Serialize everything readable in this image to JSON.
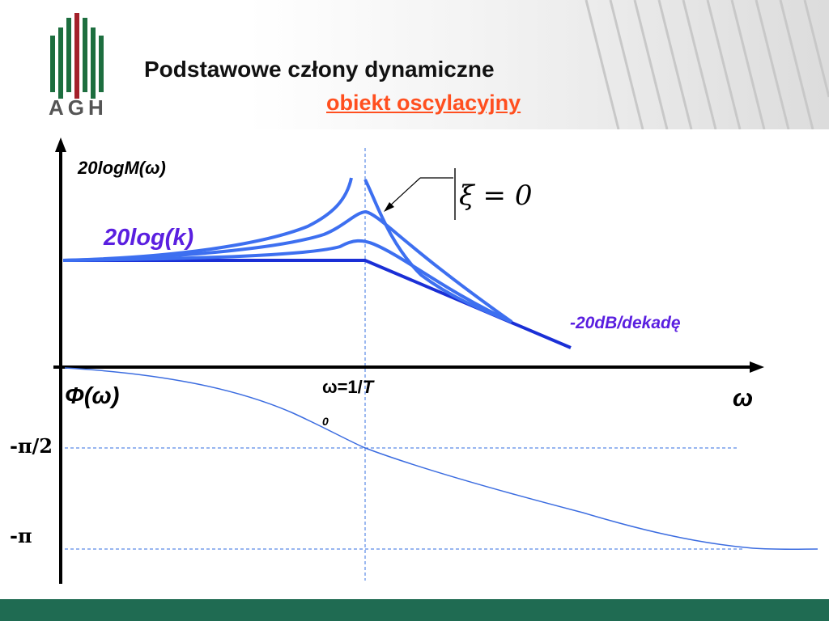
{
  "header": {
    "title": "Podstawowe człony dynamiczne",
    "subtitle": "obiekt oscylacyjny",
    "logo_text": "AGH"
  },
  "labels": {
    "magnitude_axis": "20logM(ω)",
    "gain_level": "20log(k)",
    "slope": "-20dB/dekadę",
    "phase_axis": "Φ(ω)",
    "omega_axis": "ω",
    "corner_freq_prefix": "ω=1/",
    "corner_freq_T": "T",
    "corner_freq_subscript": "0",
    "phase_minus_half_pi": "-π/2",
    "phase_minus_pi": "-π",
    "damping_annotation": "ξ = 0"
  },
  "colors": {
    "asymptote": "#1a2fd6",
    "resonance_curves": "#3d6ff0",
    "phase_curve": "#3b6ce0",
    "guide_lines": "#5b8ae6",
    "label_accent": "#5a1fe0",
    "subtitle": "#ff4f1f",
    "footer": "#1f6b52",
    "logo_green": "#1d6e3f",
    "logo_red": "#a3202a"
  }
}
